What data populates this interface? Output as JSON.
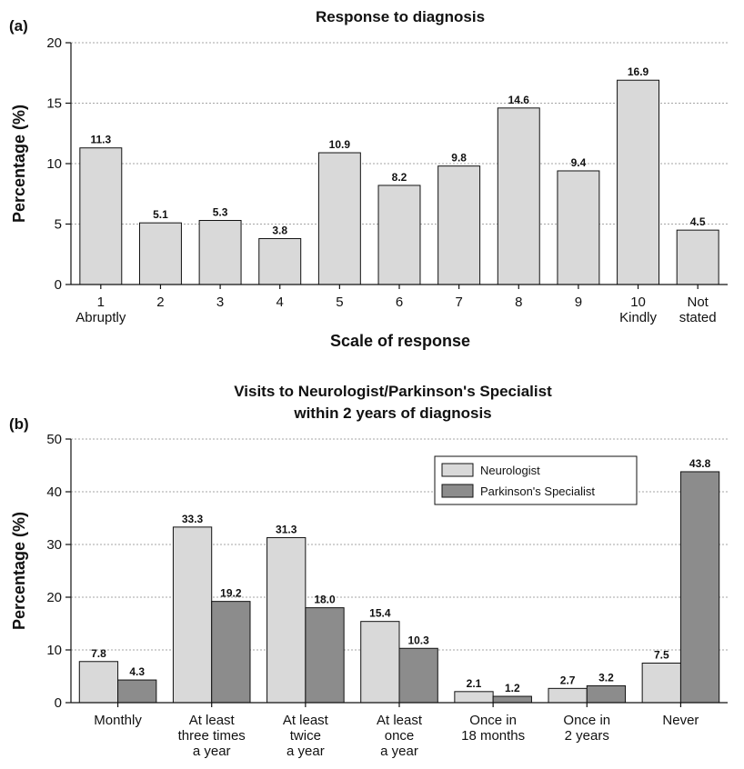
{
  "colors": {
    "neurologist": "#d9d9d9",
    "specialist": "#8c8c8c",
    "grid": "#888888",
    "axis": "#111111"
  },
  "chart_data": [
    {
      "panel_label": "(a)",
      "type": "bar",
      "title": "Response to diagnosis",
      "xlabel": "Scale of response",
      "ylabel": "Percentage (%)",
      "ylim": [
        0,
        20
      ],
      "yticks": [
        "0",
        "5",
        "10",
        "15",
        "20"
      ],
      "grid": true,
      "categories": [
        [
          "1",
          "Abruptly"
        ],
        [
          "2"
        ],
        [
          "3"
        ],
        [
          "4"
        ],
        [
          "5"
        ],
        [
          "6"
        ],
        [
          "7"
        ],
        [
          "8"
        ],
        [
          "9"
        ],
        [
          "10",
          "Kindly"
        ],
        [
          "Not",
          "stated"
        ]
      ],
      "series": [
        {
          "values": [
            11.3,
            5.1,
            5.3,
            3.8,
            10.9,
            8.2,
            9.8,
            14.6,
            9.4,
            16.9,
            4.5
          ],
          "labels": [
            "11.3",
            "5.1",
            "5.3",
            "3.8",
            "10.9",
            "8.2",
            "9.8",
            "14.6",
            "9.4",
            "16.9",
            "4.5"
          ]
        }
      ]
    },
    {
      "panel_label": "(b)",
      "type": "bar",
      "title": [
        "Visits to Neurologist/Parkinson's Specialist",
        "within 2 years of diagnosis"
      ],
      "xlabel": "",
      "ylabel": "Percentage (%)",
      "ylim": [
        0,
        50
      ],
      "yticks": [
        "0",
        "10",
        "20",
        "30",
        "40",
        "50"
      ],
      "grid": true,
      "legend": {
        "position": "top-right",
        "entries": [
          "Neurologist",
          "Parkinson's Specialist"
        ]
      },
      "categories": [
        [
          "Monthly"
        ],
        [
          "At least",
          "three times",
          "a year"
        ],
        [
          "At least",
          "twice",
          "a year"
        ],
        [
          "At least",
          "once",
          "a year"
        ],
        [
          "Once in",
          "18 months"
        ],
        [
          "Once in",
          "2 years"
        ],
        [
          "Never"
        ]
      ],
      "series": [
        {
          "name": "Neurologist",
          "values": [
            7.8,
            33.3,
            31.3,
            15.4,
            2.1,
            2.7,
            7.5
          ],
          "labels": [
            "7.8",
            "33.3",
            "31.3",
            "15.4",
            "2.1",
            "2.7",
            "7.5"
          ]
        },
        {
          "name": "Parkinson's Specialist",
          "values": [
            4.3,
            19.2,
            18.0,
            10.3,
            1.2,
            3.2,
            43.8
          ],
          "labels": [
            "4.3",
            "19.2",
            "18.0",
            "10.3",
            "1.2",
            "3.2",
            "43.8"
          ]
        }
      ]
    }
  ]
}
